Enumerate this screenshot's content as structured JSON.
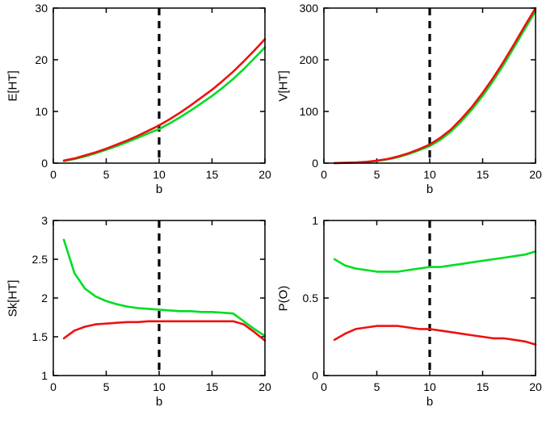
{
  "figure": {
    "background": "#ffffff"
  },
  "colors": {
    "green": "#00dd22",
    "red": "#ee1111",
    "axis": "#000000",
    "vline": "#000000"
  },
  "chart_data": [
    {
      "type": "line",
      "title": "",
      "ylabel": "E[HT]",
      "xlabel": "b",
      "xlim": [
        0,
        20
      ],
      "ylim": [
        0,
        30
      ],
      "xticks": [
        0,
        5,
        10,
        15,
        20
      ],
      "yticks": [
        0,
        10,
        20,
        30
      ],
      "vline_x": 10,
      "x": [
        1,
        2,
        3,
        4,
        5,
        6,
        7,
        8,
        9,
        10,
        11,
        12,
        13,
        14,
        15,
        16,
        17,
        18,
        19,
        20
      ],
      "series": [
        {
          "name": "green",
          "color_key": "green",
          "values": [
            0.4,
            0.8,
            1.3,
            1.9,
            2.6,
            3.3,
            4.1,
            4.9,
            5.8,
            6.6,
            7.7,
            8.9,
            10.2,
            11.6,
            13.0,
            14.6,
            16.3,
            18.2,
            20.3,
            22.4
          ]
        },
        {
          "name": "red",
          "color_key": "red",
          "values": [
            0.5,
            0.9,
            1.5,
            2.1,
            2.8,
            3.6,
            4.4,
            5.3,
            6.3,
            7.3,
            8.5,
            9.8,
            11.2,
            12.7,
            14.2,
            15.9,
            17.7,
            19.7,
            21.8,
            24.0
          ]
        }
      ]
    },
    {
      "type": "line",
      "title": "",
      "ylabel": "V[HT]",
      "xlabel": "b",
      "xlim": [
        0,
        20
      ],
      "ylim": [
        0,
        300
      ],
      "xticks": [
        0,
        5,
        10,
        15,
        20
      ],
      "yticks": [
        0,
        100,
        200,
        300
      ],
      "vline_x": 10,
      "x": [
        1,
        2,
        3,
        4,
        5,
        6,
        7,
        8,
        9,
        10,
        11,
        12,
        13,
        14,
        15,
        16,
        17,
        18,
        19,
        20
      ],
      "series": [
        {
          "name": "green",
          "color_key": "green",
          "values": [
            0.2,
            0.5,
            1.0,
            2.2,
            4.2,
            7.2,
            11.5,
            17.5,
            25,
            33,
            45,
            61,
            81,
            104,
            130,
            159,
            191,
            225,
            260,
            294
          ]
        },
        {
          "name": "red",
          "color_key": "red",
          "values": [
            0.2,
            0.6,
            1.2,
            2.5,
            4.8,
            8.0,
            12.8,
            19.2,
            27,
            36,
            49,
            65,
            86,
            109,
            136,
            165,
            197,
            231,
            266,
            300
          ]
        }
      ]
    },
    {
      "type": "line",
      "title": "",
      "ylabel": "Sk[HT]",
      "xlabel": "b",
      "xlim": [
        0,
        20
      ],
      "ylim": [
        1,
        3
      ],
      "xticks": [
        0,
        5,
        10,
        15,
        20
      ],
      "yticks": [
        1,
        1.5,
        2,
        2.5,
        3
      ],
      "vline_x": 10,
      "x": [
        1,
        2,
        3,
        4,
        5,
        6,
        7,
        8,
        9,
        10,
        11,
        12,
        13,
        14,
        15,
        16,
        17,
        18,
        19,
        20
      ],
      "series": [
        {
          "name": "green",
          "color_key": "green",
          "values": [
            2.75,
            2.32,
            2.12,
            2.02,
            1.96,
            1.92,
            1.89,
            1.87,
            1.86,
            1.85,
            1.84,
            1.83,
            1.83,
            1.82,
            1.82,
            1.81,
            1.8,
            1.7,
            1.6,
            1.51
          ]
        },
        {
          "name": "red",
          "color_key": "red",
          "values": [
            1.48,
            1.58,
            1.63,
            1.66,
            1.67,
            1.68,
            1.69,
            1.69,
            1.7,
            1.7,
            1.7,
            1.7,
            1.7,
            1.7,
            1.7,
            1.7,
            1.7,
            1.66,
            1.56,
            1.45
          ]
        }
      ]
    },
    {
      "type": "line",
      "title": "",
      "ylabel": "P(O)",
      "xlabel": "b",
      "xlim": [
        0,
        20
      ],
      "ylim": [
        0,
        1
      ],
      "xticks": [
        0,
        5,
        10,
        15,
        20
      ],
      "yticks": [
        0,
        0.5,
        1
      ],
      "vline_x": 10,
      "x": [
        1,
        2,
        3,
        4,
        5,
        6,
        7,
        8,
        9,
        10,
        11,
        12,
        13,
        14,
        15,
        16,
        17,
        18,
        19,
        20
      ],
      "series": [
        {
          "name": "green",
          "color_key": "green",
          "values": [
            0.75,
            0.71,
            0.69,
            0.68,
            0.67,
            0.67,
            0.67,
            0.68,
            0.69,
            0.7,
            0.7,
            0.71,
            0.72,
            0.73,
            0.74,
            0.75,
            0.76,
            0.77,
            0.78,
            0.8
          ]
        },
        {
          "name": "red",
          "color_key": "red",
          "values": [
            0.23,
            0.27,
            0.3,
            0.31,
            0.32,
            0.32,
            0.32,
            0.31,
            0.3,
            0.3,
            0.29,
            0.28,
            0.27,
            0.26,
            0.25,
            0.24,
            0.24,
            0.23,
            0.22,
            0.2
          ]
        }
      ]
    }
  ]
}
